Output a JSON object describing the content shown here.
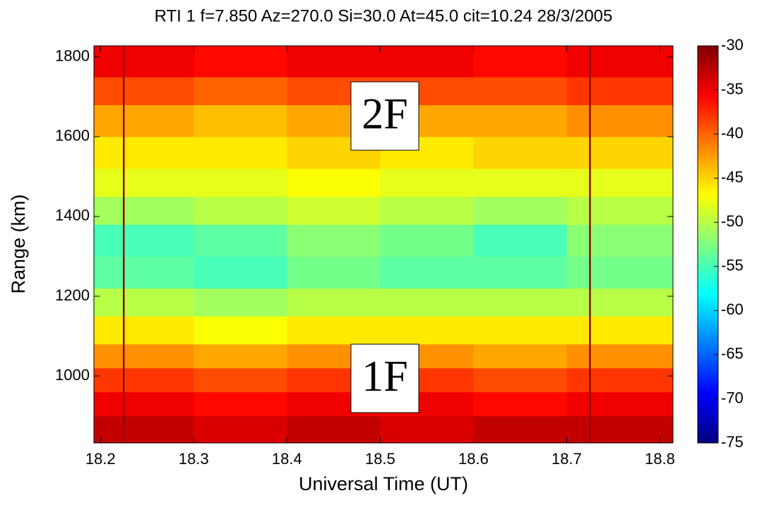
{
  "chart_data": {
    "type": "heatmap",
    "title": "RTI 1 f=7.850 Az=270.0 Si=30.0 At=45.0 cit=10.24  28/3/2005",
    "x_label": "Universal Time (UT)",
    "y_label": "Range (km)",
    "x_edges": [
      18.193,
      18.3,
      18.4,
      18.5,
      18.6,
      18.7,
      18.814
    ],
    "y_edges": [
      832,
      900,
      960,
      1020,
      1080,
      1150,
      1220,
      1300,
      1380,
      1450,
      1520,
      1600,
      1680,
      1750,
      1828
    ],
    "z": [
      [
        -33,
        -34,
        -33,
        -34,
        -33,
        -33
      ],
      [
        -35,
        -36,
        -35,
        -35,
        -36,
        -35
      ],
      [
        -38,
        -39,
        -38,
        -38,
        -39,
        -38
      ],
      [
        -42,
        -43,
        -42,
        -42,
        -43,
        -42
      ],
      [
        -46,
        -47,
        -46,
        -46,
        -46,
        -46
      ],
      [
        -50,
        -51,
        -50,
        -50,
        -50,
        -50
      ],
      [
        -54,
        -55,
        -53,
        -54,
        -54,
        -53
      ],
      [
        -55,
        -54,
        -52,
        -53,
        -55,
        -52
      ],
      [
        -51,
        -50,
        -49,
        -50,
        -51,
        -50
      ],
      [
        -48,
        -48,
        -47,
        -48,
        -48,
        -48
      ],
      [
        -46,
        -46,
        -45,
        -46,
        -45,
        -45
      ],
      [
        -43,
        -44,
        -43,
        -43,
        -43,
        -42
      ],
      [
        -39,
        -40,
        -39,
        -39,
        -39,
        -38
      ],
      [
        -35,
        -36,
        -35,
        -35,
        -36,
        -35
      ]
    ],
    "colormap": "jet",
    "clim": [
      -75,
      -30
    ],
    "cticks": [
      -30,
      -35,
      -40,
      -45,
      -50,
      -55,
      -60,
      -65,
      -70,
      -75
    ],
    "xlim": [
      18.193,
      18.814
    ],
    "xticks": [
      18.2,
      18.3,
      18.4,
      18.5,
      18.6,
      18.7,
      18.8
    ],
    "ylim": [
      832,
      1828
    ],
    "yticks": [
      1000,
      1200,
      1400,
      1600,
      1800
    ],
    "vlines": [
      18.225,
      18.725
    ],
    "vline_color": "#8b0a0a",
    "annotations": [
      "2F",
      "1F"
    ]
  }
}
